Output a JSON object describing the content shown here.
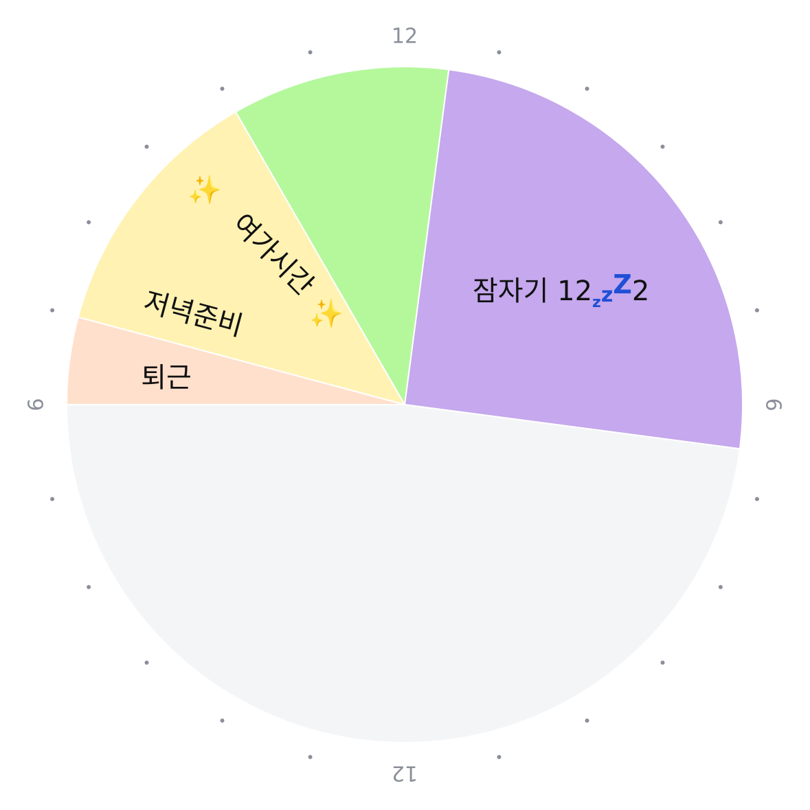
{
  "chart_data": {
    "type": "pie",
    "clock_hours": 24,
    "start_hour_at_top": 12,
    "hour_labels": [
      {
        "hour": 12,
        "text": "12"
      },
      {
        "hour": 18,
        "text": "6"
      },
      {
        "hour": 0,
        "text": "12"
      },
      {
        "hour": 6,
        "text": "6"
      }
    ],
    "slices": [
      {
        "name": "sleep",
        "start": 12.5,
        "end": 18.5,
        "color": "#c5a8ed",
        "label": {
          "prefix": "잠자기 12",
          "zzz": [
            "z",
            "z",
            "Z"
          ],
          "suffix": "2"
        }
      },
      {
        "name": "leisure",
        "start": 10.0,
        "end": 12.5,
        "color": "#b5f89c",
        "label": {
          "text": "여가시간",
          "emoji": "✨"
        }
      },
      {
        "name": "dinner-prep",
        "start": 7.0,
        "end": 10.0,
        "color": "#fff2b3",
        "label": {
          "text": "저녁준비"
        }
      },
      {
        "name": "commute",
        "start": 6.0,
        "end": 7.0,
        "color": "#ffe0cc",
        "label": {
          "text": "퇴근"
        }
      },
      {
        "name": "empty",
        "start": 18.5,
        "end": 30.0,
        "color": "#f4f5f7",
        "label": {
          "text": ""
        }
      }
    ]
  }
}
